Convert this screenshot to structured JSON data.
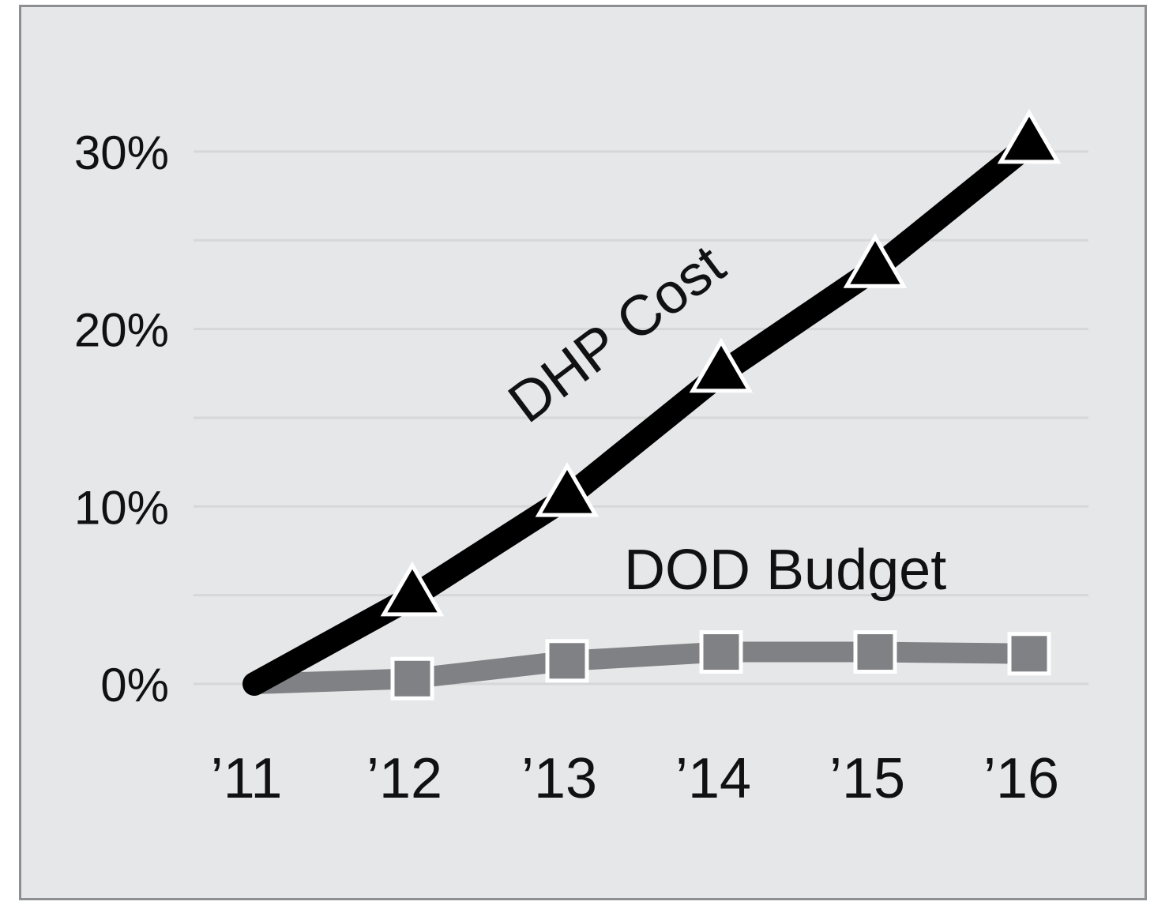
{
  "chart_data": {
    "type": "line",
    "title": "",
    "xlabel": "",
    "ylabel": "",
    "categories": [
      "'11",
      "'12",
      "'13",
      "'14",
      "'15",
      "'16"
    ],
    "x_tick_labels": [
      "’11",
      "’12",
      "’13",
      "’14",
      "’15",
      "’16"
    ],
    "y_tick_labels": [
      "0%",
      "10%",
      "20%",
      "30%"
    ],
    "y_ticks": [
      0,
      10,
      20,
      30
    ],
    "ylim": [
      0,
      32
    ],
    "grid": true,
    "minor_grid_step": 5,
    "legend": "inline-labels",
    "series": [
      {
        "name": "DHP Cost",
        "label": "DHP Cost",
        "values": [
          0,
          4.9,
          10.5,
          17.5,
          23.4,
          30.4
        ],
        "color": "#000000",
        "marker": "triangle"
      },
      {
        "name": "DOD Budget",
        "label": "DOD Budget",
        "values": [
          0,
          0.3,
          1.3,
          1.8,
          1.8,
          1.7
        ],
        "color": "#808184",
        "marker": "square"
      }
    ]
  },
  "colors": {
    "background": "#e6e7e9",
    "border": "#8e8f91",
    "gridline": "#d6d7d9",
    "dhp_line": "#000000",
    "dod_line": "#808184",
    "marker_outline": "#ffffff"
  }
}
